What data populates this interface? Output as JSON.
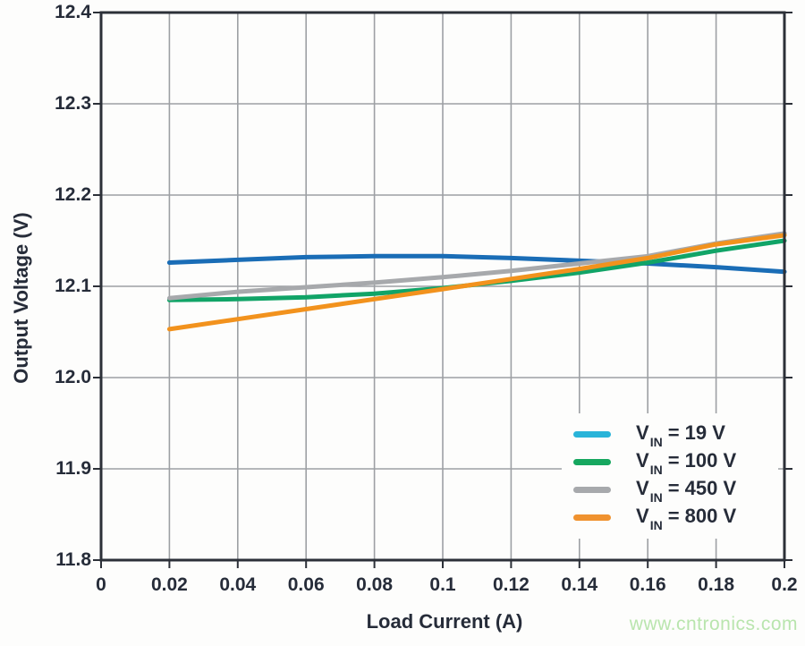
{
  "watermark": {
    "text": "www.cntronics.com",
    "color": "#b9e5ae"
  },
  "colors": {
    "background": "#fdfdfc",
    "axis_border": "#2c3038",
    "gridline": "#9da0a4",
    "text": "#262c39",
    "tick": "#2c3038"
  },
  "chart_data": {
    "type": "line",
    "title": "",
    "xlabel": "Load Current (A)",
    "ylabel": "Output Voltage (V)",
    "xlim": [
      0,
      0.2
    ],
    "ylim": [
      11.8,
      12.4
    ],
    "grid": true,
    "legend_position": "lower right",
    "x_ticks": [
      0,
      0.02,
      0.04,
      0.06,
      0.08,
      0.1,
      0.12,
      0.14,
      0.16,
      0.18,
      0.2
    ],
    "x_tick_labels": [
      "0",
      "0.02",
      "0.04",
      "0.06",
      "0.08",
      "0.1",
      "0.12",
      "0.14",
      "0.16",
      "0.18",
      "0.2"
    ],
    "y_ticks": [
      12.4,
      12.3,
      12.2,
      12.1,
      12.0,
      11.9,
      11.8
    ],
    "y_tick_labels": [
      "12.4",
      "12.3",
      "12.2",
      "12.1",
      "12.0",
      "11.9",
      "11.8"
    ],
    "x": [
      0.02,
      0.04,
      0.06,
      0.08,
      0.1,
      0.12,
      0.14,
      0.16,
      0.18,
      0.2
    ],
    "series": [
      {
        "name": "VIN = 19 V",
        "legend_base": "V",
        "legend_sub": "IN",
        "legend_rest": "= 19 V",
        "line_color": "#1a6db6",
        "swatch_color": "#29b4d9",
        "values": [
          12.126,
          12.129,
          12.132,
          12.133,
          12.133,
          12.131,
          12.128,
          12.125,
          12.121,
          12.116
        ]
      },
      {
        "name": "VIN = 100 V",
        "legend_base": "V",
        "legend_sub": "IN",
        "legend_rest": "= 100 V",
        "line_color": "#11a467",
        "swatch_color": "#16a75f",
        "values": [
          12.085,
          12.086,
          12.088,
          12.092,
          12.098,
          12.106,
          12.115,
          12.126,
          12.139,
          12.15
        ]
      },
      {
        "name": "VIN = 450 V",
        "legend_base": "V",
        "legend_sub": "IN",
        "legend_rest": "= 450 V",
        "line_color": "#a7a9ac",
        "swatch_color": "#a7a9ac",
        "values": [
          12.087,
          12.094,
          12.099,
          12.104,
          12.11,
          12.117,
          12.125,
          12.133,
          12.147,
          12.158
        ]
      },
      {
        "name": "VIN = 800 V",
        "legend_base": "V",
        "legend_sub": "IN",
        "legend_rest": "= 800 V",
        "line_color": "#f2921d",
        "swatch_color": "#f0922f",
        "values": [
          12.053,
          12.064,
          12.075,
          12.086,
          12.097,
          12.108,
          12.119,
          12.131,
          12.146,
          12.156
        ]
      }
    ]
  }
}
